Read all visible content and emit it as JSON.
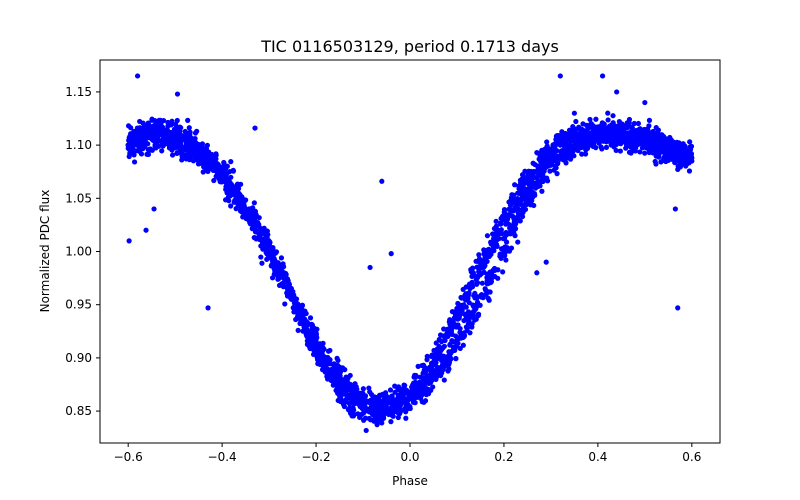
{
  "chart_data": {
    "type": "scatter",
    "title": "TIC 0116503129, period 0.1713 days",
    "xlabel": "Phase",
    "ylabel": "Normalized PDC flux",
    "xlim": [
      -0.66,
      0.66
    ],
    "ylim": [
      0.82,
      1.18
    ],
    "xticks": [
      -0.6,
      -0.4,
      -0.2,
      0.0,
      0.2,
      0.4,
      0.6
    ],
    "xtick_labels": [
      "−0.6",
      "−0.4",
      "−0.2",
      "0.0",
      "0.2",
      "0.4",
      "0.6"
    ],
    "yticks": [
      0.85,
      0.9,
      0.95,
      1.0,
      1.05,
      1.1,
      1.15
    ],
    "ytick_labels": [
      "0.85",
      "0.90",
      "0.95",
      "1.00",
      "1.05",
      "1.10",
      "1.15"
    ],
    "grid": false,
    "legend": "none",
    "marker_color": "#0000ff",
    "series": [
      {
        "x": [
          -0.6,
          -0.58,
          -0.56,
          -0.54,
          -0.52,
          -0.5,
          -0.48,
          -0.46,
          -0.44,
          -0.42,
          -0.4,
          -0.38,
          -0.36,
          -0.34,
          -0.32,
          -0.3,
          -0.28,
          -0.26,
          -0.24,
          -0.22,
          -0.2,
          -0.18,
          -0.16,
          -0.14,
          -0.12,
          -0.1,
          -0.08,
          -0.06,
          -0.04,
          -0.02,
          0.0,
          0.02,
          0.04,
          0.06,
          0.08,
          0.1,
          0.12,
          0.14,
          0.16,
          0.18,
          0.2,
          0.22,
          0.24,
          0.26,
          0.28,
          0.3,
          0.32,
          0.34,
          0.36,
          0.38,
          0.4,
          0.42,
          0.44,
          0.46,
          0.48,
          0.5,
          0.52,
          0.54,
          0.56,
          0.58,
          0.6
        ],
        "y": [
          1.1,
          1.11,
          1.113,
          1.114,
          1.113,
          1.11,
          1.105,
          1.1,
          1.093,
          1.085,
          1.075,
          1.063,
          1.05,
          1.035,
          1.02,
          1.003,
          0.985,
          0.967,
          0.948,
          0.93,
          0.915,
          0.9,
          0.887,
          0.875,
          0.866,
          0.86,
          0.856,
          0.855,
          0.857,
          0.862,
          0.868,
          0.877,
          0.89,
          0.905,
          0.922,
          0.94,
          0.958,
          0.976,
          0.995,
          1.013,
          1.03,
          1.046,
          1.06,
          1.073,
          1.084,
          1.093,
          1.1,
          1.105,
          1.108,
          1.11,
          1.111,
          1.112,
          1.112,
          1.111,
          1.109,
          1.106,
          1.103,
          1.1,
          1.097,
          1.093,
          1.088
        ]
      },
      {
        "x": [
          -0.6,
          -0.58,
          -0.56,
          -0.54,
          -0.52,
          -0.5,
          -0.48,
          -0.46,
          -0.44,
          -0.42,
          -0.4,
          -0.38,
          -0.36,
          -0.34,
          -0.32,
          -0.3,
          -0.28,
          -0.26,
          -0.24,
          -0.22,
          -0.2,
          -0.18,
          -0.16,
          -0.14,
          -0.12,
          -0.1,
          -0.08,
          -0.06,
          -0.04,
          -0.02,
          0.0,
          0.02,
          0.04,
          0.06,
          0.08,
          0.1,
          0.12,
          0.14,
          0.16,
          0.18,
          0.2,
          0.22,
          0.24,
          0.26,
          0.28,
          0.3,
          0.32,
          0.34,
          0.36,
          0.38,
          0.4,
          0.42,
          0.44,
          0.46,
          0.48,
          0.5,
          0.52,
          0.54,
          0.56,
          0.58,
          0.6
        ],
        "y": [
          1.1,
          1.105,
          1.107,
          1.107,
          1.105,
          1.102,
          1.098,
          1.093,
          1.087,
          1.08,
          1.07,
          1.058,
          1.045,
          1.03,
          1.015,
          0.998,
          0.98,
          0.962,
          0.943,
          0.925,
          0.908,
          0.892,
          0.878,
          0.866,
          0.857,
          0.852,
          0.85,
          0.85,
          0.853,
          0.857,
          0.862,
          0.868,
          0.876,
          0.886,
          0.899,
          0.913,
          0.929,
          0.946,
          0.965,
          0.984,
          1.003,
          1.022,
          1.04,
          1.056,
          1.07,
          1.081,
          1.09,
          1.097,
          1.102,
          1.105,
          1.108,
          1.109,
          1.109,
          1.108,
          1.106,
          1.103,
          1.1,
          1.097,
          1.093,
          1.089,
          1.085
        ]
      }
    ],
    "outliers": {
      "x": [
        -0.598,
        -0.58,
        -0.562,
        -0.495,
        -0.545,
        -0.43,
        -0.33,
        -0.06,
        -0.04,
        -0.085,
        -0.43,
        0.32,
        0.35,
        0.41,
        0.44,
        0.5,
        0.565,
        0.29,
        0.24,
        0.27,
        0.57
      ],
      "y": [
        1.01,
        1.165,
        1.02,
        1.148,
        1.04,
        0.947,
        1.116,
        1.066,
        0.998,
        0.985,
        1.09,
        1.165,
        1.13,
        1.165,
        1.15,
        1.14,
        1.04,
        0.99,
        1.06,
        0.98,
        0.947
      ]
    }
  }
}
